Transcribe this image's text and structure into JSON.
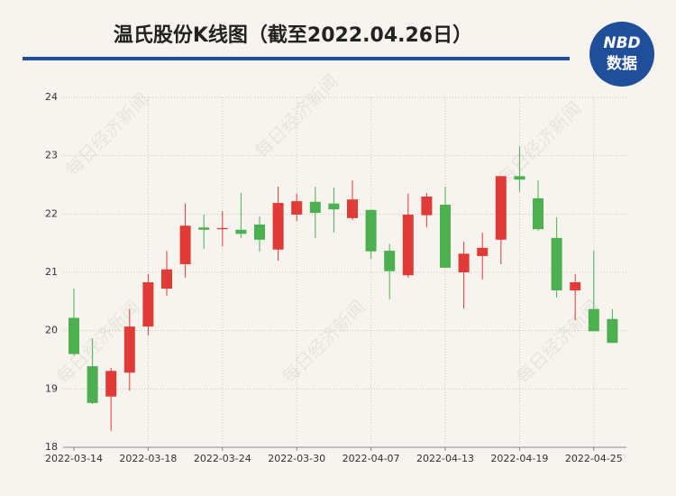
{
  "chart_data": {
    "type": "candlestick",
    "title": "温氏股份K线图（截至2022.04.26日）",
    "logo": {
      "top": "NBD",
      "bottom": "数据"
    },
    "watermark": "每日经济新闻",
    "categories": [
      "2022-03-14",
      null,
      null,
      null,
      "2022-03-18",
      null,
      null,
      null,
      "2022-03-24",
      null,
      null,
      null,
      "2022-03-30",
      null,
      null,
      null,
      "2022-04-07",
      null,
      null,
      null,
      "2022-04-13",
      null,
      null,
      null,
      "2022-04-19",
      null,
      null,
      null,
      "2022-04-25",
      null
    ],
    "open": [
      20.22,
      19.39,
      18.87,
      19.28,
      20.07,
      20.72,
      21.14,
      21.77,
      21.74,
      21.73,
      21.82,
      21.39,
      21.99,
      22.21,
      22.18,
      21.93,
      22.07,
      21.37,
      20.95,
      21.98,
      22.16,
      21.0,
      21.28,
      21.56,
      22.65,
      22.27,
      21.59,
      20.69,
      20.37,
      20.2
    ],
    "high": [
      20.72,
      19.87,
      19.36,
      20.37,
      20.97,
      21.37,
      22.18,
      21.99,
      22.05,
      22.36,
      21.96,
      22.47,
      22.35,
      22.47,
      22.45,
      22.58,
      22.08,
      21.49,
      22.35,
      22.36,
      22.47,
      21.53,
      21.68,
      22.65,
      23.16,
      22.58,
      21.94,
      20.97,
      21.37,
      20.37
    ],
    "low": [
      19.57,
      18.74,
      18.28,
      18.97,
      19.92,
      20.6,
      20.91,
      21.4,
      21.45,
      21.59,
      21.36,
      21.2,
      21.88,
      21.59,
      21.68,
      21.9,
      21.23,
      20.54,
      20.91,
      21.77,
      21.08,
      20.38,
      20.88,
      21.14,
      22.38,
      21.71,
      20.57,
      20.18,
      19.99,
      19.79
    ],
    "close": [
      19.6,
      18.76,
      19.31,
      20.07,
      20.83,
      21.05,
      21.8,
      21.73,
      21.76,
      21.66,
      21.56,
      22.19,
      22.22,
      22.02,
      22.08,
      22.25,
      21.36,
      21.02,
      21.99,
      22.3,
      21.08,
      21.32,
      21.42,
      22.65,
      22.59,
      21.74,
      20.69,
      20.83,
      19.99,
      19.79
    ],
    "up_color": "#e03b36",
    "down_color": "#4caf50",
    "ylim": [
      18,
      24
    ],
    "yticks": [
      18,
      19,
      20,
      21,
      22,
      23,
      24
    ],
    "grid": true
  }
}
